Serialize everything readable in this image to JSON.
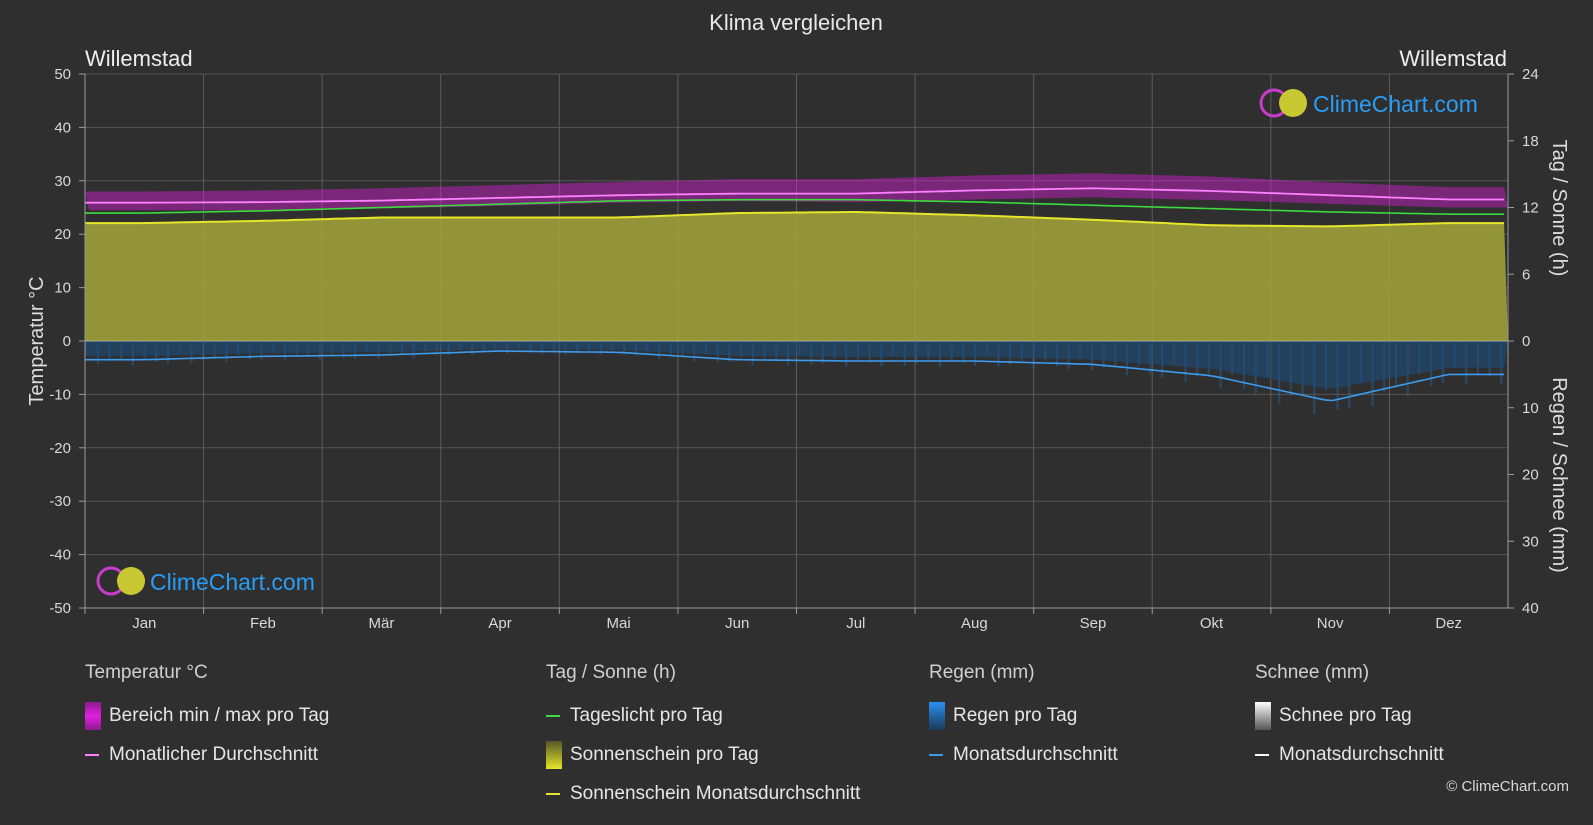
{
  "title": "Klima vergleichen",
  "location_left": "Willemstad",
  "location_right": "Willemstad",
  "brand": "ClimeChart.com",
  "copyright": "© ClimeChart.com",
  "colors": {
    "background": "#2f2f2f",
    "temp_range": "#d81fd8",
    "temp_avg": "#ff80ff",
    "daylight": "#3ddc3d",
    "sunshine_fill": "#a5a53a",
    "sunshine_avg": "#e6e62a",
    "rain": "#1e78c8",
    "rain_avg": "#3c9cf0",
    "snow_avg": "#ffffff"
  },
  "chart_data": {
    "type": "area",
    "months": [
      "Jan",
      "Feb",
      "Mär",
      "Apr",
      "Mai",
      "Jun",
      "Jul",
      "Aug",
      "Sep",
      "Okt",
      "Nov",
      "Dez"
    ],
    "left_axis": {
      "label": "Temperatur °C",
      "ticks": [
        "50",
        "40",
        "30",
        "20",
        "10",
        "0",
        "-10",
        "-20",
        "-30",
        "-40",
        "-50"
      ],
      "range": [
        -50,
        50
      ]
    },
    "right_axis_top": {
      "label": "Tag / Sonne (h)",
      "ticks": [
        "24",
        "18",
        "12",
        "6",
        "0"
      ],
      "range": [
        0,
        24
      ]
    },
    "right_axis_bottom": {
      "label": "Regen / Schnee (mm)",
      "ticks": [
        "0",
        "10",
        "20",
        "30",
        "40"
      ],
      "range": [
        0,
        40
      ]
    },
    "series": [
      {
        "name": "Monatlicher Durchschnitt",
        "unit": "°C",
        "values": [
          25.9,
          26.0,
          26.3,
          26.8,
          27.3,
          27.6,
          27.6,
          28.2,
          28.6,
          28.1,
          27.3,
          26.5
        ]
      },
      {
        "name": "Bereich min / max pro Tag",
        "unit": "°C",
        "min": [
          24.5,
          24.5,
          24.8,
          25.3,
          25.9,
          26.2,
          26.0,
          26.5,
          26.9,
          26.4,
          25.7,
          25.0
        ],
        "max": [
          28.0,
          28.2,
          28.6,
          29.2,
          29.8,
          30.3,
          30.3,
          31.0,
          31.4,
          30.8,
          29.7,
          28.8
        ]
      },
      {
        "name": "Tageslicht pro Tag",
        "unit": "h",
        "values": [
          11.5,
          11.7,
          12.0,
          12.3,
          12.6,
          12.7,
          12.7,
          12.5,
          12.2,
          11.9,
          11.6,
          11.4
        ]
      },
      {
        "name": "Sonnenschein Monatsdurchschnitt",
        "unit": "h",
        "values": [
          10.6,
          10.8,
          11.1,
          11.1,
          11.1,
          11.5,
          11.6,
          11.3,
          10.9,
          10.4,
          10.3,
          10.6
        ]
      },
      {
        "name": "Regen Monatsdurchschnitt",
        "unit": "mm",
        "values": [
          2.8,
          2.3,
          2.1,
          1.5,
          1.7,
          2.8,
          3.0,
          3.0,
          3.5,
          5.2,
          9.0,
          5.0
        ]
      },
      {
        "name": "Schnee Monatsdurchschnitt",
        "unit": "mm",
        "values": [
          0,
          0,
          0,
          0,
          0,
          0,
          0,
          0,
          0,
          0,
          0,
          0
        ]
      }
    ]
  },
  "legend": {
    "temperature": {
      "heading": "Temperatur °C",
      "items": [
        "Bereich min / max pro Tag",
        "Monatlicher Durchschnitt"
      ]
    },
    "daysun": {
      "heading": "Tag / Sonne (h)",
      "items": [
        "Tageslicht pro Tag",
        "Sonnenschein pro Tag",
        "Sonnenschein Monatsdurchschnitt"
      ]
    },
    "rain": {
      "heading": "Regen (mm)",
      "items": [
        "Regen pro Tag",
        "Monatsdurchschnitt"
      ]
    },
    "snow": {
      "heading": "Schnee (mm)",
      "items": [
        "Schnee pro Tag",
        "Monatsdurchschnitt"
      ]
    }
  }
}
